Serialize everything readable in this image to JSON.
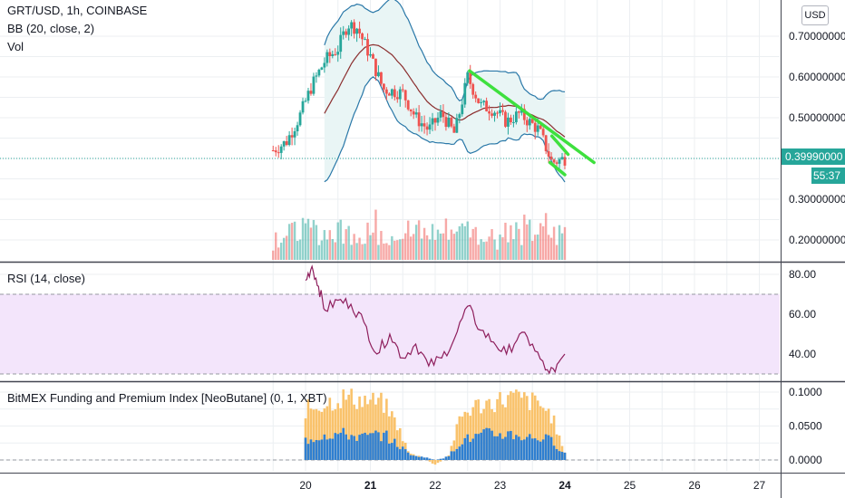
{
  "legend": {
    "symbol": "GRT/USD, 1h, COINBASE",
    "bb": "BB (20, close, 2)",
    "vol": "Vol",
    "rsi": "RSI (14, close)",
    "funding": "BitMEX Funding and Premium Index [NeoButane] (0, 1, XBT)"
  },
  "currency_button": "USD",
  "current_price": "0.39990000",
  "countdown": "55:37",
  "colors": {
    "up": "#26a69a",
    "down": "#ef5350",
    "bb_band": "#2a78a8",
    "bb_basis": "#8b2e2e",
    "bb_fill": "#e9f5f5",
    "trendline": "#3ee03e",
    "rsi_line": "#8e1e5c",
    "rsi_band": "#f3e5fb",
    "funding_blue": "#2f7fd0",
    "funding_orange": "#f9c26b",
    "grid": "#eceff2"
  },
  "chart_data": [
    {
      "type": "candlestick",
      "title": "GRT/USD, 1h, COINBASE",
      "x_ticks": [
        "20",
        "21",
        "22",
        "23",
        "24",
        "25",
        "26",
        "27"
      ],
      "y_ticks": [
        "0.70000000",
        "0.60000000",
        "0.50000000",
        "0.40000000",
        "0.30000000",
        "0.20000000"
      ],
      "ylim": [
        0.155,
        0.77
      ],
      "grid": true,
      "close_series_approx": [
        {
          "day": 19.5,
          "close": 0.42
        },
        {
          "day": 19.7,
          "close": 0.44
        },
        {
          "day": 19.9,
          "close": 0.5
        },
        {
          "day": 20.1,
          "close": 0.58
        },
        {
          "day": 20.3,
          "close": 0.64
        },
        {
          "day": 20.5,
          "close": 0.67
        },
        {
          "day": 20.65,
          "close": 0.73
        },
        {
          "day": 20.8,
          "close": 0.72
        },
        {
          "day": 21.0,
          "close": 0.65
        },
        {
          "day": 21.2,
          "close": 0.57
        },
        {
          "day": 21.5,
          "close": 0.56
        },
        {
          "day": 21.7,
          "close": 0.5
        },
        {
          "day": 21.9,
          "close": 0.47
        },
        {
          "day": 22.1,
          "close": 0.51
        },
        {
          "day": 22.3,
          "close": 0.46
        },
        {
          "day": 22.5,
          "close": 0.6
        },
        {
          "day": 22.7,
          "close": 0.53
        },
        {
          "day": 22.9,
          "close": 0.52
        },
        {
          "day": 23.1,
          "close": 0.49
        },
        {
          "day": 23.3,
          "close": 0.51
        },
        {
          "day": 23.6,
          "close": 0.47
        },
        {
          "day": 23.8,
          "close": 0.39
        },
        {
          "day": 24.0,
          "close": 0.3999
        }
      ],
      "bollinger": {
        "period": 20,
        "source": "close",
        "stddev": 2
      },
      "volume": "Vol"
    },
    {
      "type": "line",
      "title": "RSI (14, close)",
      "y_ticks": [
        "80.00",
        "60.00",
        "40.00"
      ],
      "ylim": [
        25,
        85
      ],
      "band": [
        30,
        70
      ],
      "x": [
        20.0,
        20.1,
        20.2,
        20.3,
        20.5,
        20.7,
        20.9,
        21.1,
        21.3,
        21.5,
        21.7,
        21.9,
        22.1,
        22.3,
        22.5,
        22.7,
        22.9,
        23.1,
        23.3,
        23.5,
        23.7,
        23.85,
        24.0
      ],
      "values": [
        77,
        84,
        74,
        62,
        67,
        65,
        56,
        40,
        50,
        38,
        45,
        34,
        38,
        48,
        64,
        52,
        46,
        40,
        50,
        45,
        32,
        31,
        40
      ]
    },
    {
      "type": "bar",
      "title": "BitMEX Funding and Premium Index [NeoButane] (0, 1, XBT)",
      "y_ticks": [
        "0.1000",
        "0.0500",
        "0.0000"
      ],
      "ylim": [
        -0.012,
        0.105
      ],
      "series": [
        {
          "x": [
            20.0,
            20.3,
            20.6,
            20.9,
            21.2,
            21.4,
            21.6,
            21.8,
            22.0,
            22.2,
            22.4,
            22.6,
            22.8,
            23.0,
            23.2,
            23.4,
            23.6,
            23.8,
            24.0
          ],
          "values": [
            0.08,
            0.09,
            0.1,
            0.095,
            0.09,
            0.06,
            0.01,
            0.005,
            -0.008,
            0.005,
            0.07,
            0.085,
            0.09,
            0.095,
            0.1,
            0.095,
            0.09,
            0.07,
            0.01
          ]
        },
        {
          "x": [
            20.0,
            20.3,
            20.6,
            20.9,
            21.2,
            21.4,
            21.6,
            21.8,
            22.0,
            22.2,
            22.4,
            22.6,
            22.8,
            23.0,
            23.2,
            23.4,
            23.6,
            23.8,
            24.0
          ],
          "values": [
            0.03,
            0.04,
            0.04,
            0.035,
            0.04,
            0.025,
            0.01,
            0.005,
            0.0,
            0.005,
            0.03,
            0.035,
            0.04,
            0.04,
            0.04,
            0.035,
            0.035,
            0.03,
            0.01
          ]
        }
      ]
    }
  ]
}
